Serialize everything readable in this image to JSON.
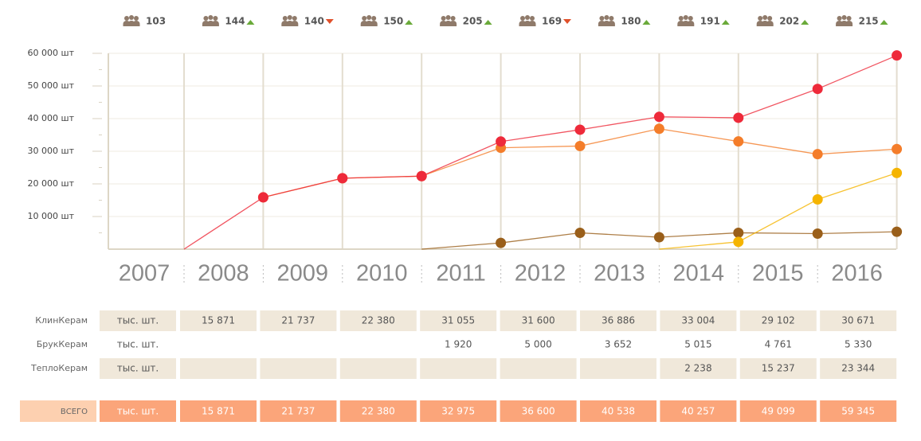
{
  "headcount": [
    {
      "value": 103,
      "trend": null
    },
    {
      "value": 144,
      "trend": "up"
    },
    {
      "value": 140,
      "trend": "down"
    },
    {
      "value": 150,
      "trend": "up"
    },
    {
      "value": 205,
      "trend": "up"
    },
    {
      "value": 169,
      "trend": "down"
    },
    {
      "value": 180,
      "trend": "up"
    },
    {
      "value": 191,
      "trend": "up"
    },
    {
      "value": 202,
      "trend": "up"
    },
    {
      "value": 215,
      "trend": "up"
    }
  ],
  "chart_data": {
    "type": "line",
    "categories": [
      "2007",
      "2008",
      "2009",
      "2010",
      "2011",
      "2012",
      "2013",
      "2014",
      "2015",
      "2016"
    ],
    "series": [
      {
        "color": "#f47d2a",
        "values": [
          null,
          15871,
          21737,
          22380,
          31055,
          31600,
          36886,
          33004,
          29102,
          30671
        ]
      },
      {
        "color": "#9a5f1a",
        "values": [
          null,
          null,
          null,
          0,
          1920,
          5000,
          3652,
          5015,
          4761,
          5330
        ]
      },
      {
        "color": "#f5b400",
        "values": [
          null,
          null,
          null,
          null,
          null,
          null,
          0,
          2238,
          15237,
          23344
        ]
      },
      {
        "color": "#ee2a3a",
        "values": [
          0,
          15871,
          21737,
          22380,
          32975,
          36600,
          40538,
          40257,
          49099,
          59345
        ]
      }
    ],
    "ylim": [
      0,
      60000
    ],
    "yticks": [
      {
        "value": 10000,
        "label": "10 000 шт"
      },
      {
        "value": 20000,
        "label": "20 000 шт"
      },
      {
        "value": 30000,
        "label": "30 000 шт"
      },
      {
        "value": 40000,
        "label": "40 000 шт"
      },
      {
        "value": 50000,
        "label": "50 000 шт"
      },
      {
        "value": 60000,
        "label": "60 000 шт"
      }
    ],
    "grid": true
  },
  "table": {
    "rows": [
      {
        "label": "КлинКерам",
        "unit": "тыс. шт.",
        "cells": [
          "15 871",
          "21 737",
          "22 380",
          "31 055",
          "31 600",
          "36 886",
          "33 004",
          "29 102",
          "30 671"
        ]
      },
      {
        "label": "БрукКерам",
        "unit": "тыс. шт.",
        "cells": [
          null,
          null,
          null,
          "1 920",
          "5 000",
          "3 652",
          "5 015",
          "4 761",
          "5 330"
        ]
      },
      {
        "label": "ТеплоКерам",
        "unit": "тыс. шт.",
        "cells": [
          null,
          null,
          null,
          null,
          null,
          null,
          "2 238",
          "15 237",
          "23 344"
        ]
      }
    ],
    "total": {
      "label": "ВСЕГО",
      "unit": "тыс. шт.",
      "cells": [
        "15 871",
        "21 737",
        "22 380",
        "32 975",
        "36 600",
        "40 538",
        "40 257",
        "49 099",
        "59 345"
      ]
    }
  }
}
